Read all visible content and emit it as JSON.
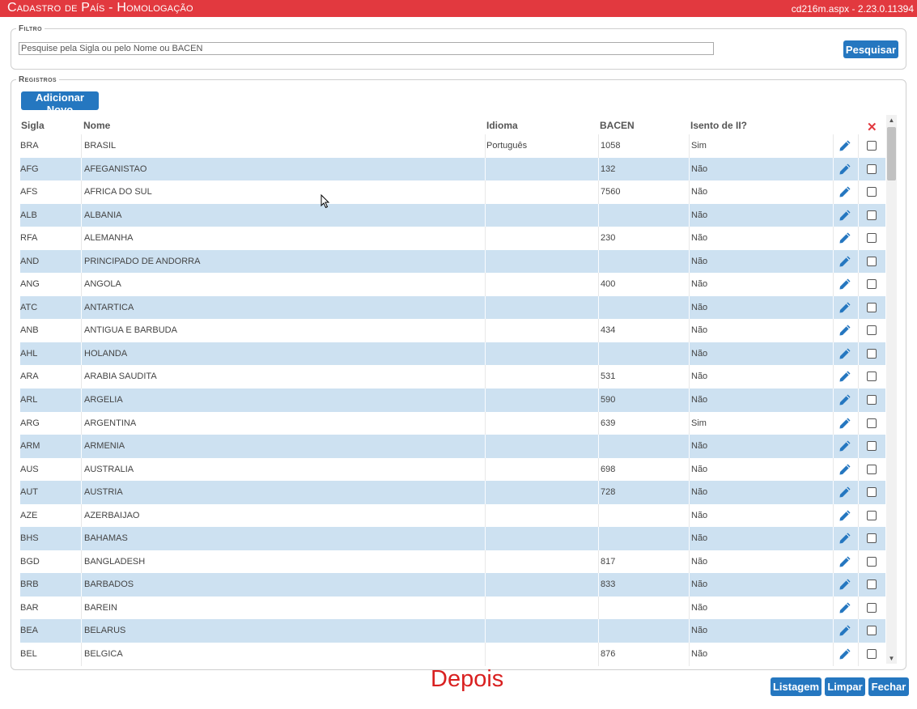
{
  "header": {
    "title": "Cadastro de País  - Homologação",
    "version": "cd216m.aspx - 2.23.0.11394"
  },
  "filtro": {
    "legend": "Filtro",
    "search_value": "Pesquise pela Sigla ou pelo Nome ou BACEN",
    "search_button": "Pesquisar"
  },
  "registros": {
    "legend": "Registros",
    "add_button": "Adicionar Novo",
    "columns": {
      "sigla": "Sigla",
      "nome": "Nome",
      "idioma": "Idioma",
      "bacen": "BACEN",
      "isento": "Isento de II?"
    },
    "rows": [
      {
        "sigla": "BRA",
        "nome": "BRASIL",
        "idioma": "Português",
        "bacen": "1058",
        "isento": "Sim"
      },
      {
        "sigla": "AFG",
        "nome": "AFEGANISTAO",
        "idioma": "",
        "bacen": "132",
        "isento": "Não"
      },
      {
        "sigla": "AFS",
        "nome": "AFRICA DO SUL",
        "idioma": "",
        "bacen": "7560",
        "isento": "Não"
      },
      {
        "sigla": "ALB",
        "nome": "ALBANIA",
        "idioma": "",
        "bacen": "",
        "isento": "Não"
      },
      {
        "sigla": "RFA",
        "nome": "ALEMANHA",
        "idioma": "",
        "bacen": "230",
        "isento": "Não"
      },
      {
        "sigla": "AND",
        "nome": "PRINCIPADO DE ANDORRA",
        "idioma": "",
        "bacen": "",
        "isento": "Não"
      },
      {
        "sigla": "ANG",
        "nome": "ANGOLA",
        "idioma": "",
        "bacen": "400",
        "isento": "Não"
      },
      {
        "sigla": "ATC",
        "nome": "ANTARTICA",
        "idioma": "",
        "bacen": "",
        "isento": "Não"
      },
      {
        "sigla": "ANB",
        "nome": "ANTIGUA E BARBUDA",
        "idioma": "",
        "bacen": "434",
        "isento": "Não"
      },
      {
        "sigla": "AHL",
        "nome": "HOLANDA",
        "idioma": "",
        "bacen": "",
        "isento": "Não"
      },
      {
        "sigla": "ARA",
        "nome": "ARABIA SAUDITA",
        "idioma": "",
        "bacen": "531",
        "isento": "Não"
      },
      {
        "sigla": "ARL",
        "nome": "ARGELIA",
        "idioma": "",
        "bacen": "590",
        "isento": "Não"
      },
      {
        "sigla": "ARG",
        "nome": "ARGENTINA",
        "idioma": "",
        "bacen": "639",
        "isento": "Sim"
      },
      {
        "sigla": "ARM",
        "nome": "ARMENIA",
        "idioma": "",
        "bacen": "",
        "isento": "Não"
      },
      {
        "sigla": "AUS",
        "nome": "AUSTRALIA",
        "idioma": "",
        "bacen": "698",
        "isento": "Não"
      },
      {
        "sigla": "AUT",
        "nome": "AUSTRIA",
        "idioma": "",
        "bacen": "728",
        "isento": "Não"
      },
      {
        "sigla": "AZE",
        "nome": "AZERBAIJAO",
        "idioma": "",
        "bacen": "",
        "isento": "Não"
      },
      {
        "sigla": "BHS",
        "nome": "BAHAMAS",
        "idioma": "",
        "bacen": "",
        "isento": "Não"
      },
      {
        "sigla": "BGD",
        "nome": "BANGLADESH",
        "idioma": "",
        "bacen": "817",
        "isento": "Não"
      },
      {
        "sigla": "BRB",
        "nome": "BARBADOS",
        "idioma": "",
        "bacen": "833",
        "isento": "Não"
      },
      {
        "sigla": "BAR",
        "nome": "BAREIN",
        "idioma": "",
        "bacen": "",
        "isento": "Não"
      },
      {
        "sigla": "BEA",
        "nome": "BELARUS",
        "idioma": "",
        "bacen": "",
        "isento": "Não"
      },
      {
        "sigla": "BEL",
        "nome": "BELGICA",
        "idioma": "",
        "bacen": "876",
        "isento": "Não"
      }
    ]
  },
  "footer": {
    "caption": "Depois",
    "listagem": "Listagem",
    "limpar": "Limpar",
    "fechar": "Fechar"
  },
  "icons": {
    "edit": "pencil-icon",
    "delete_all": "close-icon",
    "accent_color": "#2577c0",
    "header_color": "#e2393f",
    "row_alt_color": "#cde1f1"
  }
}
